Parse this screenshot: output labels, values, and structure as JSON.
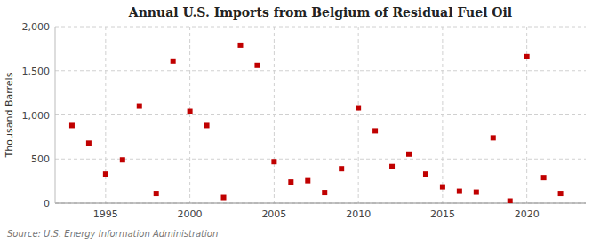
{
  "chart_data": {
    "type": "scatter",
    "title": "Annual U.S. Imports from Belgium of Residual Fuel Oil",
    "ylabel": "Thousand Barrels",
    "annotations": [
      "Source: U.S. Energy Information Administration"
    ],
    "x": [
      1993,
      1994,
      1995,
      1996,
      1997,
      1998,
      1999,
      2000,
      2001,
      2002,
      2003,
      2004,
      2005,
      2006,
      2007,
      2008,
      2009,
      2010,
      2011,
      2012,
      2013,
      2014,
      2015,
      2016,
      2017,
      2018,
      2019,
      2020,
      2021,
      2022
    ],
    "values": [
      880,
      680,
      330,
      490,
      1100,
      110,
      1610,
      1040,
      880,
      65,
      1790,
      1560,
      470,
      240,
      255,
      120,
      390,
      1080,
      820,
      415,
      555,
      330,
      185,
      135,
      125,
      740,
      25,
      1660,
      290,
      110
    ],
    "color": "#c00000",
    "marker": "square",
    "xlim": [
      1992.0,
      2023.5
    ],
    "xticks": [
      1995,
      2000,
      2005,
      2010,
      2015,
      2020
    ],
    "ylim": [
      0,
      2000
    ],
    "yticks": [
      0,
      500,
      {
        "value": 1000,
        "label": "1,000"
      },
      {
        "value": 1500,
        "label": "1,500"
      },
      {
        "value": 2000,
        "label": "2,000"
      }
    ],
    "grid": true
  }
}
